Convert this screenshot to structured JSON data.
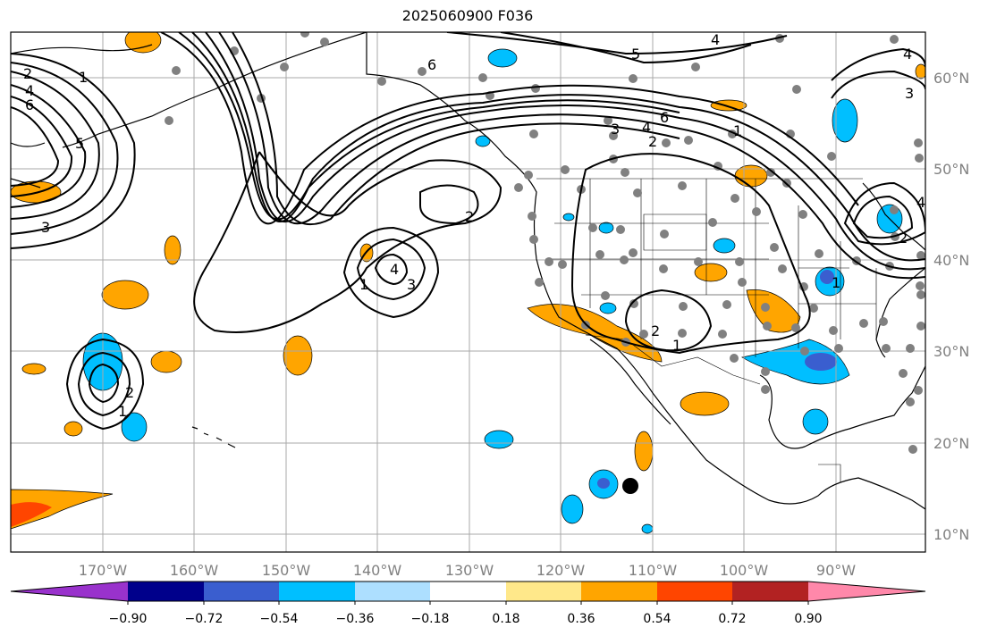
{
  "title": "2025060900 F036",
  "longitude_labels": [
    "170°W",
    "160°W",
    "150°W",
    "140°W",
    "130°W",
    "120°W",
    "110°W",
    "100°W",
    "90°W"
  ],
  "latitude_labels": [
    "60°N",
    "50°N",
    "40°N",
    "30°N",
    "20°N",
    "10°N"
  ],
  "colorbar": {
    "colors": [
      "#9932CC",
      "#00008B",
      "#3A5ECF",
      "#00BFFF",
      "#ADDFFF",
      "#FFFFFF",
      "#FFE88A",
      "#FFA500",
      "#FF4500",
      "#B22222",
      "#FF88AA"
    ],
    "tick_labels": [
      "−0.90",
      "−0.72",
      "−0.54",
      "−0.36",
      "−0.18",
      "0.18",
      "0.36",
      "0.54",
      "0.72",
      "0.90"
    ]
  },
  "contour_labels": {
    "nw_a": "2",
    "nw_b": "4",
    "nw_c": "6",
    "nw_d": "1",
    "nw_e": "5",
    "nw_f": "3",
    "ak_6": "6",
    "top_4": "4",
    "top_5": "5",
    "ne_3": "3",
    "ne_4": "4",
    "band_6": "6",
    "band_4": "4",
    "band_3": "3",
    "band_2": "2",
    "cen_2": "2",
    "low_4": "4",
    "low_3": "3",
    "low_1": "1",
    "sw_2": "2",
    "sw_1": "1",
    "mex_2": "2",
    "mex_1": "1",
    "gl_1": "1",
    "e_2": "2",
    "e_4": "4",
    "e_1": "1"
  }
}
